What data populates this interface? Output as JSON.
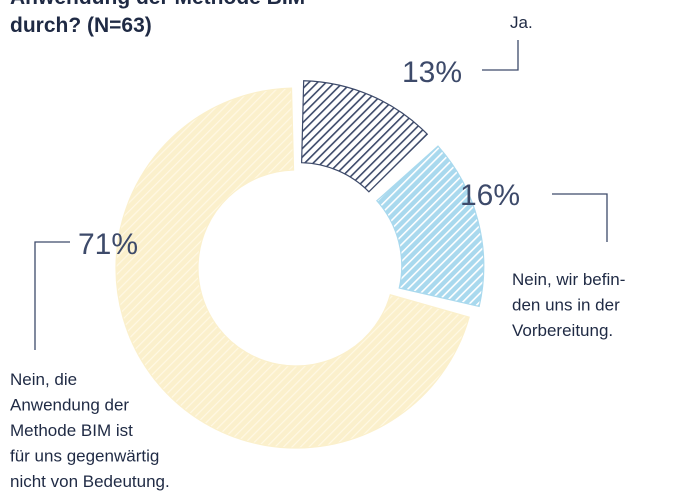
{
  "chart_data": {
    "type": "donut",
    "title": [
      "Anwendung der Methode BIM",
      "durch? (N=63)"
    ],
    "categories": [
      [
        "Ja."
      ],
      [
        "Nein, wir befin-",
        "den uns in der",
        "Vorbereitung."
      ],
      [
        "Nein, die",
        "Anwendung der",
        "Methode BIM ist",
        "für uns gegenwärtig",
        "nicht von Bedeutung."
      ]
    ],
    "values": [
      13,
      16,
      71
    ],
    "value_labels": [
      "13%",
      "16%",
      "71%"
    ],
    "colors": [
      "#3d4a6a",
      "#a9d9ee",
      "#fbf0cc"
    ]
  }
}
